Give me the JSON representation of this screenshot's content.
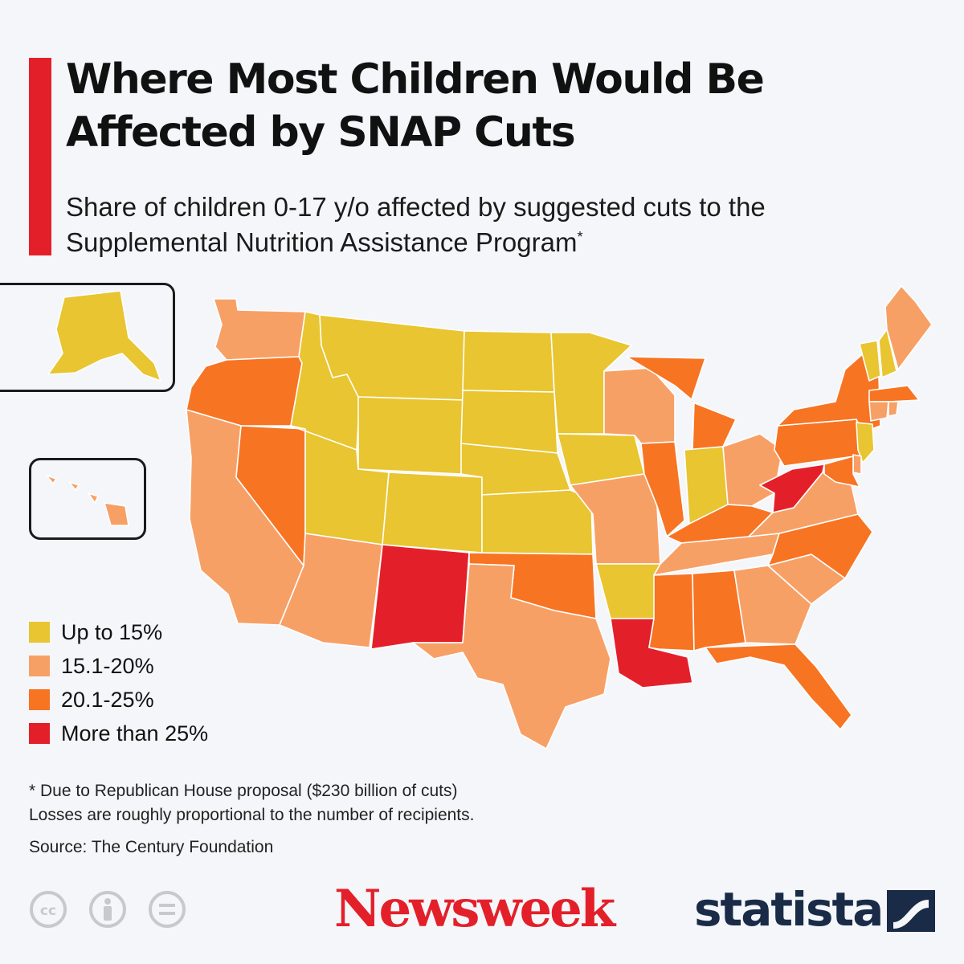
{
  "title": "Where Most Children Would Be Affected by SNAP Cuts",
  "subtitle": "Share of children 0-17 y/o affected by suggested cuts to the Supplemental Nutrition Assistance Program",
  "subtitle_marker": "*",
  "legend": [
    {
      "label": "Up to 15%",
      "color": "#e8c531"
    },
    {
      "label": "15.1-20%",
      "color": "#f7a066"
    },
    {
      "label": "20.1-25%",
      "color": "#f77423"
    },
    {
      "label": "More than 25%",
      "color": "#e3202a"
    }
  ],
  "states": {
    "WA": 1,
    "OR": 2,
    "CA": 1,
    "NV": 2,
    "ID": 0,
    "MT": 0,
    "WY": 0,
    "UT": 0,
    "AZ": 1,
    "CO": 0,
    "NM": 3,
    "ND": 0,
    "SD": 0,
    "NE": 0,
    "KS": 0,
    "OK": 2,
    "TX": 1,
    "MN": 0,
    "IA": 0,
    "MO": 1,
    "AR": 0,
    "LA": 3,
    "WI": 1,
    "IL": 2,
    "MI": 2,
    "IN": 0,
    "OH": 1,
    "KY": 2,
    "TN": 1,
    "MS": 2,
    "AL": 2,
    "GA": 1,
    "FL": 2,
    "SC": 1,
    "NC": 2,
    "VA": 1,
    "WV": 3,
    "PA": 2,
    "NY": 2,
    "VT": 0,
    "NH": 0,
    "ME": 1,
    "MA": 2,
    "CT": 1,
    "RI": 1,
    "NJ": 0,
    "DE": 1,
    "MD": 2,
    "AK": 0,
    "HI": 1
  },
  "notes": {
    "line1": "* Due to Republican House proposal ($230 billion of cuts)",
    "line2": "Losses are roughly proportional to the number of recipients.",
    "source": "Source: The Century Foundation"
  },
  "branding": {
    "newsweek": "Newsweek",
    "statista": "statista"
  },
  "cc_icons": [
    "cc-icon",
    "attribution-icon",
    "noderivs-icon"
  ]
}
